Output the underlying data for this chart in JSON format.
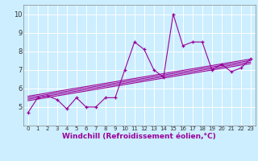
{
  "scatter_x": [
    0,
    1,
    2,
    3,
    4,
    5,
    6,
    7,
    8,
    9,
    10,
    11,
    12,
    13,
    14,
    15,
    16,
    17,
    18,
    19,
    20,
    21,
    22,
    23
  ],
  "scatter_y": [
    4.7,
    5.5,
    5.6,
    5.4,
    4.9,
    5.5,
    5.0,
    5.0,
    5.5,
    5.5,
    7.0,
    8.5,
    8.1,
    7.0,
    6.6,
    10.0,
    8.3,
    8.5,
    8.5,
    7.0,
    7.3,
    6.9,
    7.1,
    7.6
  ],
  "line_color": "#990099",
  "bg_color": "#cceeff",
  "grid_color": "#ffffff",
  "xlabel": "Windchill (Refroidissement éolien,°C)",
  "ylabel": "",
  "xlim": [
    -0.5,
    23.5
  ],
  "ylim": [
    4.0,
    10.5
  ],
  "yticks": [
    5,
    6,
    7,
    8,
    9,
    10
  ],
  "xticks": [
    0,
    1,
    2,
    3,
    4,
    5,
    6,
    7,
    8,
    9,
    10,
    11,
    12,
    13,
    14,
    15,
    16,
    17,
    18,
    19,
    20,
    21,
    22,
    23
  ],
  "reg_lines": [
    {
      "x0": 0,
      "y0": 5.58,
      "x1": 23,
      "y1": 7.58
    },
    {
      "x0": 0,
      "y0": 5.5,
      "x1": 23,
      "y1": 7.5
    },
    {
      "x0": 0,
      "y0": 5.42,
      "x1": 23,
      "y1": 7.42
    },
    {
      "x0": 0,
      "y0": 5.34,
      "x1": 23,
      "y1": 7.34
    }
  ],
  "title_color": "#660066",
  "tick_color": "#333333",
  "tick_fontsize": 5,
  "xlabel_fontsize": 6.5,
  "spine_color": "#888888"
}
